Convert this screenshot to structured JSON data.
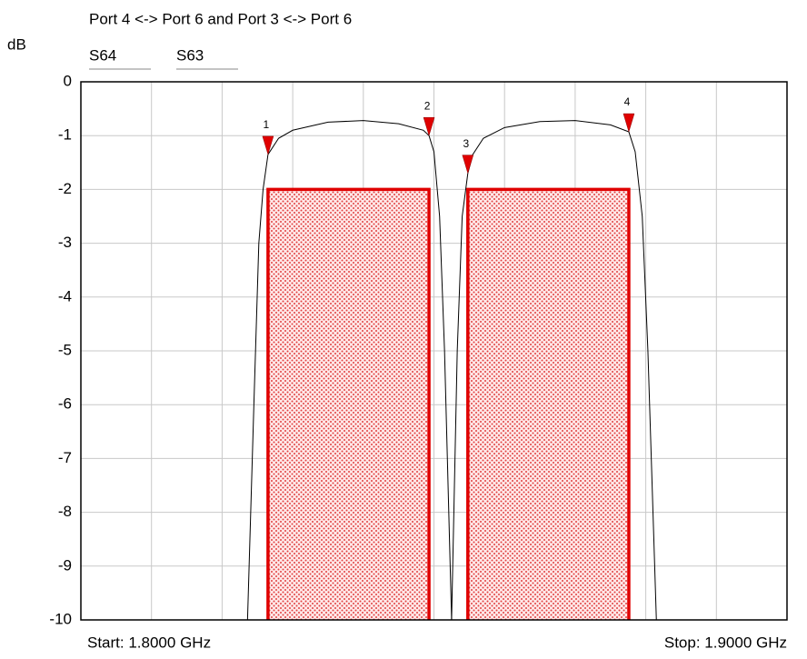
{
  "chart_data": {
    "type": "line",
    "title": "Port 4 <-> Port 6  and   Port 3 <-> Port 6",
    "ylabel": "dB",
    "start_label": "Start: 1.8000 GHz",
    "stop_label": "Stop: 1.9000 GHz",
    "xlim": [
      1.8,
      1.9
    ],
    "xticks": [
      1.8,
      1.81,
      1.82,
      1.83,
      1.84,
      1.85,
      1.86,
      1.87,
      1.88,
      1.89,
      1.9
    ],
    "ylim": [
      -10,
      0
    ],
    "yticks": [
      0,
      -1,
      -2,
      -3,
      -4,
      -5,
      -6,
      -7,
      -8,
      -9,
      -10
    ],
    "grid": true,
    "series": [
      {
        "name": "S64",
        "color": "#000000",
        "x": [
          1.8236,
          1.8245,
          1.8252,
          1.8258,
          1.8265,
          1.828,
          1.83,
          1.835,
          1.84,
          1.845,
          1.8485,
          1.8493,
          1.85,
          1.8508,
          1.8515,
          1.8525
        ],
        "values": [
          -10,
          -6,
          -3,
          -2,
          -1.35,
          -1.05,
          -0.9,
          -0.75,
          -0.72,
          -0.78,
          -0.9,
          -1.0,
          -1.3,
          -2.5,
          -5,
          -10
        ]
      },
      {
        "name": "S63",
        "color": "#000000",
        "x": [
          1.8525,
          1.8533,
          1.854,
          1.8548,
          1.8555,
          1.857,
          1.86,
          1.865,
          1.87,
          1.875,
          1.8776,
          1.8785,
          1.8795,
          1.8803,
          1.8815
        ],
        "values": [
          -10,
          -5,
          -2.5,
          -1.7,
          -1.35,
          -1.05,
          -0.85,
          -0.74,
          -0.72,
          -0.8,
          -0.93,
          -1.3,
          -2.5,
          -5,
          -10
        ]
      }
    ],
    "masks": [
      {
        "x": [
          1.8265,
          1.8493
        ],
        "value": -2,
        "color": "#e00000"
      },
      {
        "x": [
          1.8548,
          1.8776
        ],
        "value": -2,
        "color": "#e00000"
      }
    ],
    "markers": [
      {
        "label": "1",
        "x": 1.8265,
        "value": -1.35,
        "color": "#e00000"
      },
      {
        "label": "2",
        "x": 1.8493,
        "value": -1.0,
        "color": "#e00000"
      },
      {
        "label": "3",
        "x": 1.8548,
        "value": -1.7,
        "color": "#e00000"
      },
      {
        "label": "4",
        "x": 1.8776,
        "value": -0.93,
        "color": "#e00000"
      }
    ]
  }
}
